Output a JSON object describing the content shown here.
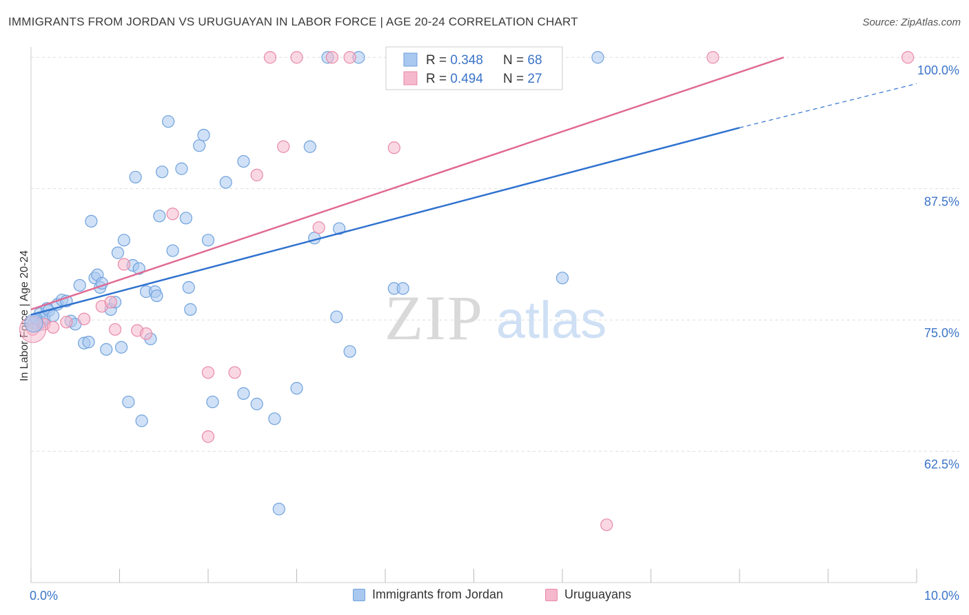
{
  "title": "IMMIGRANTS FROM JORDAN VS URUGUAYAN IN LABOR FORCE | AGE 20-24 CORRELATION CHART",
  "source": "Source: ZipAtlas.com",
  "watermark": {
    "zip": "ZIP",
    "atlas": "atlas"
  },
  "colors": {
    "blue_fill": "#a9c8f0",
    "blue_stroke": "#6fa1dc",
    "blue_line": "#2f72cf",
    "pink_fill": "#f5b8cc",
    "pink_stroke": "#e889a8",
    "pink_line": "#e06a93",
    "axis_label_blue": "#3b74c8",
    "grid": "#dddddd"
  },
  "legend_top": {
    "rows": [
      {
        "r_label": "R = ",
        "r_value": "0.348",
        "n_label": "N = ",
        "n_value": "68"
      },
      {
        "r_label": "R = ",
        "r_value": "0.494",
        "n_label": "N = ",
        "n_value": "27"
      }
    ]
  },
  "legend_bottom": [
    "Immigrants from Jordan",
    "Uruguayans"
  ],
  "chart_data": {
    "type": "scatter",
    "title": "IMMIGRANTS FROM JORDAN VS URUGUAYAN IN LABOR FORCE | AGE 20-24 CORRELATION CHART",
    "xlabel": "",
    "ylabel": "In Labor Force | Age 20-24",
    "xlim": [
      0,
      10
    ],
    "ylim": [
      50.0,
      101.0
    ],
    "x_tick_labels": [
      "0.0%",
      "10.0%"
    ],
    "y_ticks": [
      62.5,
      75.0,
      87.5,
      100.0
    ],
    "y_tick_labels": [
      "62.5%",
      "75.0%",
      "87.5%",
      "100.0%"
    ],
    "grid": true,
    "legend_position": "top-center",
    "series": [
      {
        "name": "Immigrants from Jordan",
        "color": "#a9c8f0",
        "r": 0.348,
        "n": 68,
        "trend": {
          "x0": 0.0,
          "y0": 75.5,
          "x1": 8.0,
          "y1": 93.3,
          "dashed_to_x": 10.0,
          "dashed_to_y": 97.5
        },
        "points": [
          [
            0.03,
            74.7
          ],
          [
            0.08,
            74.5
          ],
          [
            0.1,
            75.6
          ],
          [
            0.12,
            74.8
          ],
          [
            0.15,
            75.2
          ],
          [
            0.18,
            76.1
          ],
          [
            0.2,
            75.9
          ],
          [
            0.25,
            75.4
          ],
          [
            0.3,
            76.5
          ],
          [
            0.35,
            76.9
          ],
          [
            0.4,
            76.8
          ],
          [
            0.45,
            74.9
          ],
          [
            0.5,
            74.6
          ],
          [
            0.55,
            78.3
          ],
          [
            0.6,
            72.8
          ],
          [
            0.65,
            72.9
          ],
          [
            0.68,
            84.4
          ],
          [
            0.72,
            79.0
          ],
          [
            0.75,
            79.3
          ],
          [
            0.78,
            78.1
          ],
          [
            0.8,
            78.5
          ],
          [
            0.85,
            72.2
          ],
          [
            0.9,
            76.0
          ],
          [
            0.95,
            76.7
          ],
          [
            0.98,
            81.4
          ],
          [
            1.02,
            72.4
          ],
          [
            1.05,
            82.6
          ],
          [
            1.1,
            67.2
          ],
          [
            1.15,
            80.2
          ],
          [
            1.18,
            88.6
          ],
          [
            1.22,
            79.9
          ],
          [
            1.25,
            65.4
          ],
          [
            1.3,
            77.7
          ],
          [
            1.35,
            73.2
          ],
          [
            1.4,
            77.7
          ],
          [
            1.42,
            77.3
          ],
          [
            1.45,
            84.9
          ],
          [
            1.48,
            89.1
          ],
          [
            1.55,
            93.9
          ],
          [
            1.6,
            81.6
          ],
          [
            1.7,
            89.4
          ],
          [
            1.75,
            84.7
          ],
          [
            1.78,
            78.1
          ],
          [
            1.8,
            76.0
          ],
          [
            1.9,
            91.6
          ],
          [
            1.95,
            92.6
          ],
          [
            2.0,
            82.6
          ],
          [
            2.05,
            67.2
          ],
          [
            2.2,
            88.1
          ],
          [
            2.4,
            90.1
          ],
          [
            2.4,
            68.0
          ],
          [
            2.55,
            67.0
          ],
          [
            2.75,
            65.6
          ],
          [
            2.8,
            57.0
          ],
          [
            3.0,
            68.5
          ],
          [
            3.15,
            91.5
          ],
          [
            3.2,
            82.8
          ],
          [
            3.35,
            100.0
          ],
          [
            3.45,
            75.3
          ],
          [
            3.48,
            83.7
          ],
          [
            3.6,
            72.0
          ],
          [
            3.7,
            100.0
          ],
          [
            4.1,
            78.0
          ],
          [
            4.2,
            78.0
          ],
          [
            4.5,
            100.0
          ],
          [
            6.0,
            79.0
          ],
          [
            6.4,
            100.0
          ],
          [
            0.06,
            75.1
          ]
        ]
      },
      {
        "name": "Uruguayans",
        "color": "#f5b8cc",
        "r": 0.494,
        "n": 27,
        "trend": {
          "x0": 0.0,
          "y0": 76.0,
          "x1": 8.5,
          "y1": 100.0
        },
        "points": [
          [
            0.02,
            74.1
          ],
          [
            0.15,
            74.6
          ],
          [
            0.25,
            74.3
          ],
          [
            0.4,
            74.8
          ],
          [
            0.6,
            75.1
          ],
          [
            0.8,
            76.3
          ],
          [
            0.9,
            76.7
          ],
          [
            0.95,
            74.1
          ],
          [
            1.05,
            80.3
          ],
          [
            1.2,
            74.0
          ],
          [
            1.3,
            73.7
          ],
          [
            1.6,
            85.1
          ],
          [
            2.0,
            70.0
          ],
          [
            2.0,
            63.9
          ],
          [
            2.3,
            70.0
          ],
          [
            2.55,
            88.8
          ],
          [
            2.7,
            100.0
          ],
          [
            2.85,
            91.5
          ],
          [
            3.0,
            100.0
          ],
          [
            3.25,
            83.8
          ],
          [
            3.4,
            100.0
          ],
          [
            3.6,
            100.0
          ],
          [
            4.1,
            91.4
          ],
          [
            4.5,
            100.0
          ],
          [
            6.5,
            55.5
          ],
          [
            7.7,
            100.0
          ],
          [
            9.9,
            100.0
          ]
        ]
      }
    ]
  }
}
